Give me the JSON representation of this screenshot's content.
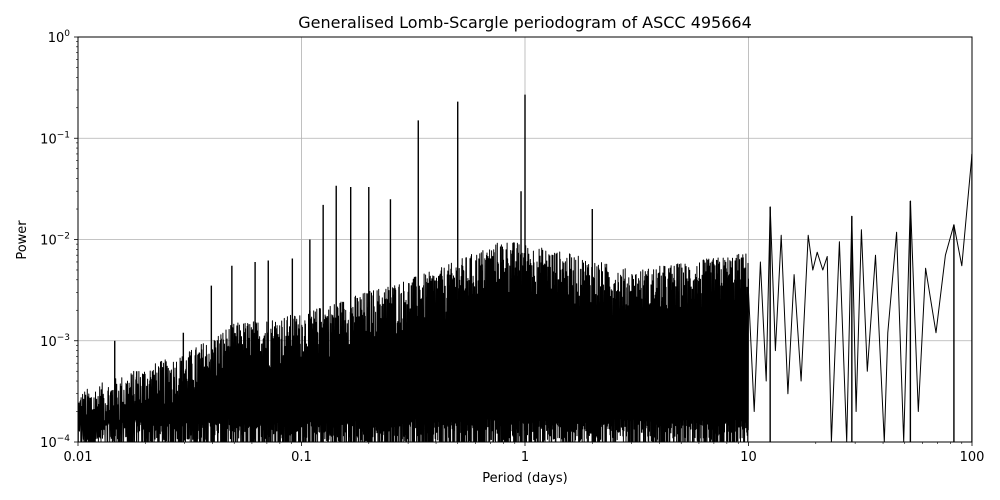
{
  "chart_data": {
    "type": "line",
    "title": "Generalised Lomb-Scargle periodogram of ASCC 495664",
    "xlabel": "Period (days)",
    "ylabel": "Power",
    "xscale": "log",
    "yscale": "log",
    "xlim": [
      0.01,
      100
    ],
    "ylim": [
      0.0001,
      1
    ],
    "grid": true,
    "line_color": "#000000",
    "x_ticks": [
      {
        "value": 0.01,
        "label": "0.01"
      },
      {
        "value": 0.1,
        "label": "0.1"
      },
      {
        "value": 1,
        "label": "1"
      },
      {
        "value": 10,
        "label": "10"
      },
      {
        "value": 100,
        "label": "100"
      }
    ],
    "y_ticks": [
      {
        "value": 0.0001,
        "base": "10",
        "exp": "−4"
      },
      {
        "value": 0.001,
        "base": "10",
        "exp": "−3"
      },
      {
        "value": 0.01,
        "base": "10",
        "exp": "−2"
      },
      {
        "value": 0.1,
        "base": "10",
        "exp": "−1"
      },
      {
        "value": 1,
        "base": "10",
        "exp": "0"
      }
    ],
    "peaks": [
      {
        "x": 0.0146,
        "y": 0.001
      },
      {
        "x": 0.0183,
        "y": 0.0005
      },
      {
        "x": 0.0296,
        "y": 0.0012
      },
      {
        "x": 0.0395,
        "y": 0.0035
      },
      {
        "x": 0.0488,
        "y": 0.0055
      },
      {
        "x": 0.062,
        "y": 0.006
      },
      {
        "x": 0.071,
        "y": 0.0062
      },
      {
        "x": 0.091,
        "y": 0.0065
      },
      {
        "x": 0.109,
        "y": 0.01
      },
      {
        "x": 0.125,
        "y": 0.022
      },
      {
        "x": 0.143,
        "y": 0.034
      },
      {
        "x": 0.166,
        "y": 0.033
      },
      {
        "x": 0.2,
        "y": 0.033
      },
      {
        "x": 0.25,
        "y": 0.025
      },
      {
        "x": 0.333,
        "y": 0.15
      },
      {
        "x": 0.5,
        "y": 0.23
      },
      {
        "x": 1.0,
        "y": 0.27
      },
      {
        "x": 0.96,
        "y": 0.03
      },
      {
        "x": 2.0,
        "y": 0.02
      },
      {
        "x": 12.5,
        "y": 0.021
      },
      {
        "x": 29.0,
        "y": 0.017
      },
      {
        "x": 53.0,
        "y": 0.024
      },
      {
        "x": 83.0,
        "y": 0.014
      },
      {
        "x": 100.0,
        "y": 0.07
      }
    ],
    "envelope": [
      {
        "x": 0.01,
        "y": 0.00025
      },
      {
        "x": 0.015,
        "y": 0.00035
      },
      {
        "x": 0.02,
        "y": 0.00045
      },
      {
        "x": 0.03,
        "y": 0.0006
      },
      {
        "x": 0.05,
        "y": 0.0012
      },
      {
        "x": 0.1,
        "y": 0.0015
      },
      {
        "x": 0.2,
        "y": 0.0025
      },
      {
        "x": 0.4,
        "y": 0.004
      },
      {
        "x": 0.8,
        "y": 0.008
      },
      {
        "x": 1.5,
        "y": 0.006
      },
      {
        "x": 3,
        "y": 0.004
      },
      {
        "x": 6,
        "y": 0.005
      },
      {
        "x": 10,
        "y": 0.006
      }
    ],
    "smooth_tail": [
      {
        "x": 10.0,
        "y": 0.003
      },
      {
        "x": 10.6,
        "y": 0.0002
      },
      {
        "x": 11.3,
        "y": 0.006
      },
      {
        "x": 12.0,
        "y": 0.0004
      },
      {
        "x": 12.5,
        "y": 0.021
      },
      {
        "x": 13.2,
        "y": 0.0008
      },
      {
        "x": 14.0,
        "y": 0.011
      },
      {
        "x": 15.0,
        "y": 0.0003
      },
      {
        "x": 16.0,
        "y": 0.0045
      },
      {
        "x": 17.2,
        "y": 0.0004
      },
      {
        "x": 18.5,
        "y": 0.011
      },
      {
        "x": 19.4,
        "y": 0.005
      },
      {
        "x": 20.3,
        "y": 0.0075
      },
      {
        "x": 21.5,
        "y": 0.005
      },
      {
        "x": 22.5,
        "y": 0.0068
      },
      {
        "x": 23.5,
        "y": 0.0001
      },
      {
        "x": 25.5,
        "y": 0.0095
      },
      {
        "x": 27.5,
        "y": 0.0001
      },
      {
        "x": 29.0,
        "y": 0.017
      },
      {
        "x": 30.3,
        "y": 0.0002
      },
      {
        "x": 32.0,
        "y": 0.0125
      },
      {
        "x": 34.0,
        "y": 0.0005
      },
      {
        "x": 37.0,
        "y": 0.007
      },
      {
        "x": 40.5,
        "y": 0.0001
      },
      {
        "x": 42.0,
        "y": 0.0012
      },
      {
        "x": 46.0,
        "y": 0.0118
      },
      {
        "x": 49.5,
        "y": 0.0001
      },
      {
        "x": 53.0,
        "y": 0.024
      },
      {
        "x": 57.5,
        "y": 0.0002
      },
      {
        "x": 62.0,
        "y": 0.0052
      },
      {
        "x": 69.0,
        "y": 0.0012
      },
      {
        "x": 76.0,
        "y": 0.007
      },
      {
        "x": 83.0,
        "y": 0.014
      },
      {
        "x": 90.0,
        "y": 0.0055
      },
      {
        "x": 100.0,
        "y": 0.07
      }
    ]
  }
}
